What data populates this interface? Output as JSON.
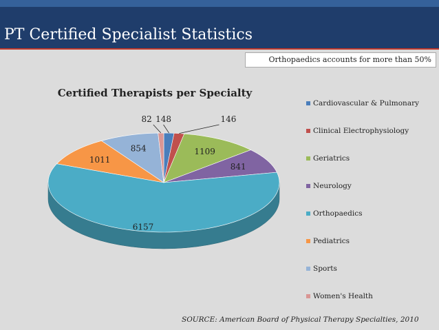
{
  "slide": {
    "title": "PT Certified Specialist Statistics",
    "subtitle": "Orthopaedics accounts for more than 50%",
    "source": "SOURCE: American Board of Physical Therapy Specialties, 2010",
    "colors": {
      "header": "#1f3d6b",
      "accent": "#35619a",
      "rule": "#c0392b"
    }
  },
  "chart_data": {
    "type": "pie",
    "style": "3d",
    "title": "Certified Therapists per Specialty",
    "legend_position": "right",
    "series": [
      {
        "name": "Cardiovascular & Pulmonary",
        "value": 148,
        "color": "#4a7ebb"
      },
      {
        "name": "Clinical Electrophysiology",
        "value": 146,
        "color": "#c0504d"
      },
      {
        "name": "Geriatrics",
        "value": 1109,
        "color": "#9bbb59"
      },
      {
        "name": "Neurology",
        "value": 841,
        "color": "#8064a2"
      },
      {
        "name": "Orthopaedics",
        "value": 6157,
        "color": "#4bacc6"
      },
      {
        "name": "Pediatrics",
        "value": 1011,
        "color": "#f79646"
      },
      {
        "name": "Sports",
        "value": 854,
        "color": "#95b3d7"
      },
      {
        "name": "Women's Health",
        "value": 82,
        "color": "#d99694"
      }
    ]
  }
}
